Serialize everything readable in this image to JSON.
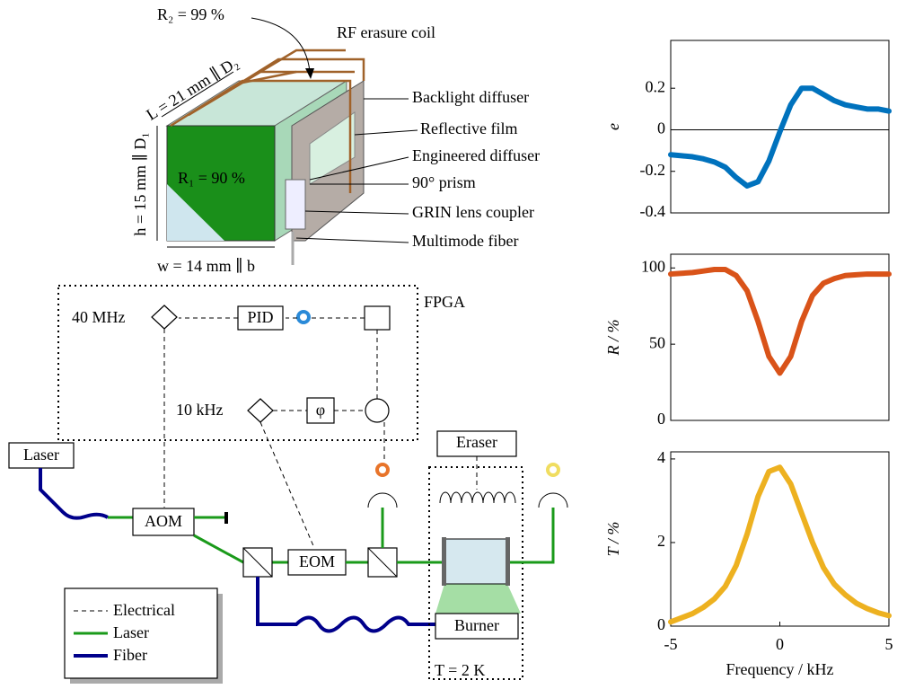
{
  "diagram": {
    "r2": "R₂ = 99 %",
    "coil": "RF erasure coil",
    "length": "L = 21 mm ∥ D₂",
    "backlight": "Backlight diffuser",
    "film": "Reflective film",
    "engineered": "Engineered diffuser",
    "prism": "90° prism",
    "grin": "GRIN lens coupler",
    "fiber": "Multimode fiber",
    "height": "h = 15 mm ∥ D₁",
    "r1": "R₁ = 90 %",
    "width": "w = 14 mm ∥ b",
    "fpga": "FPGA",
    "f40": "40 MHz",
    "pid": "PID",
    "f10": "10 kHz",
    "phi": "φ",
    "laser": "Laser",
    "aom": "AOM",
    "eom": "EOM",
    "eraser": "Eraser",
    "burner": "Burner",
    "temp": "T = 2 K",
    "legend": [
      "Electrical",
      "Laser",
      "Fiber"
    ]
  },
  "chart_data": [
    {
      "type": "line",
      "ylabel": "e",
      "x": [
        -5,
        -4.5,
        -4,
        -3.5,
        -3,
        -2.5,
        -2,
        -1.5,
        -1,
        -0.5,
        0,
        0.5,
        1,
        1.5,
        2,
        2.5,
        3,
        3.5,
        4,
        4.5,
        5
      ],
      "series": [
        {
          "color": "#0072bd",
          "values": [
            -0.12,
            -0.125,
            -0.13,
            -0.14,
            -0.155,
            -0.18,
            -0.23,
            -0.27,
            -0.25,
            -0.15,
            -0.01,
            0.12,
            0.2,
            0.2,
            0.17,
            0.14,
            0.12,
            0.11,
            0.1,
            0.1,
            0.09
          ]
        }
      ],
      "xlim": [
        -5,
        5
      ],
      "ylim": [
        -0.4,
        0.43
      ],
      "yticks": [
        0.2,
        0,
        -0.2,
        -0.4
      ],
      "hline": 0
    },
    {
      "type": "line",
      "ylabel": "R / %",
      "x": [
        -5,
        -4.5,
        -4,
        -3.5,
        -3,
        -2.5,
        -2,
        -1.5,
        -1,
        -0.5,
        0,
        0.5,
        1,
        1.5,
        2,
        2.5,
        3,
        3.5,
        4,
        4.5,
        5
      ],
      "series": [
        {
          "color": "#d95319",
          "values": [
            96,
            96.5,
            97,
            98,
            99,
            99,
            95,
            85,
            65,
            42,
            31,
            42,
            65,
            82,
            90,
            93,
            95,
            95.5,
            96,
            96,
            96
          ]
        }
      ],
      "xlim": [
        -5,
        5
      ],
      "ylim": [
        0,
        109
      ],
      "yticks": [
        100,
        50,
        0
      ]
    },
    {
      "type": "line",
      "ylabel": "T / %",
      "xlabel": "Frequency / kHz",
      "x": [
        -5,
        -4.5,
        -4,
        -3.5,
        -3,
        -2.5,
        -2,
        -1.5,
        -1,
        -0.5,
        0,
        0.5,
        1,
        1.5,
        2,
        2.5,
        3,
        3.5,
        4,
        4.5,
        5
      ],
      "series": [
        {
          "color": "#edb120",
          "values": [
            0.1,
            0.2,
            0.3,
            0.45,
            0.65,
            0.95,
            1.45,
            2.2,
            3.1,
            3.7,
            3.8,
            3.4,
            2.7,
            2.0,
            1.4,
            1.0,
            0.75,
            0.55,
            0.42,
            0.32,
            0.25
          ]
        }
      ],
      "xlim": [
        -5,
        5
      ],
      "ylim": [
        0,
        4.17
      ],
      "xticks": [
        -5,
        0,
        5
      ],
      "yticks": [
        4,
        2,
        0
      ]
    }
  ]
}
